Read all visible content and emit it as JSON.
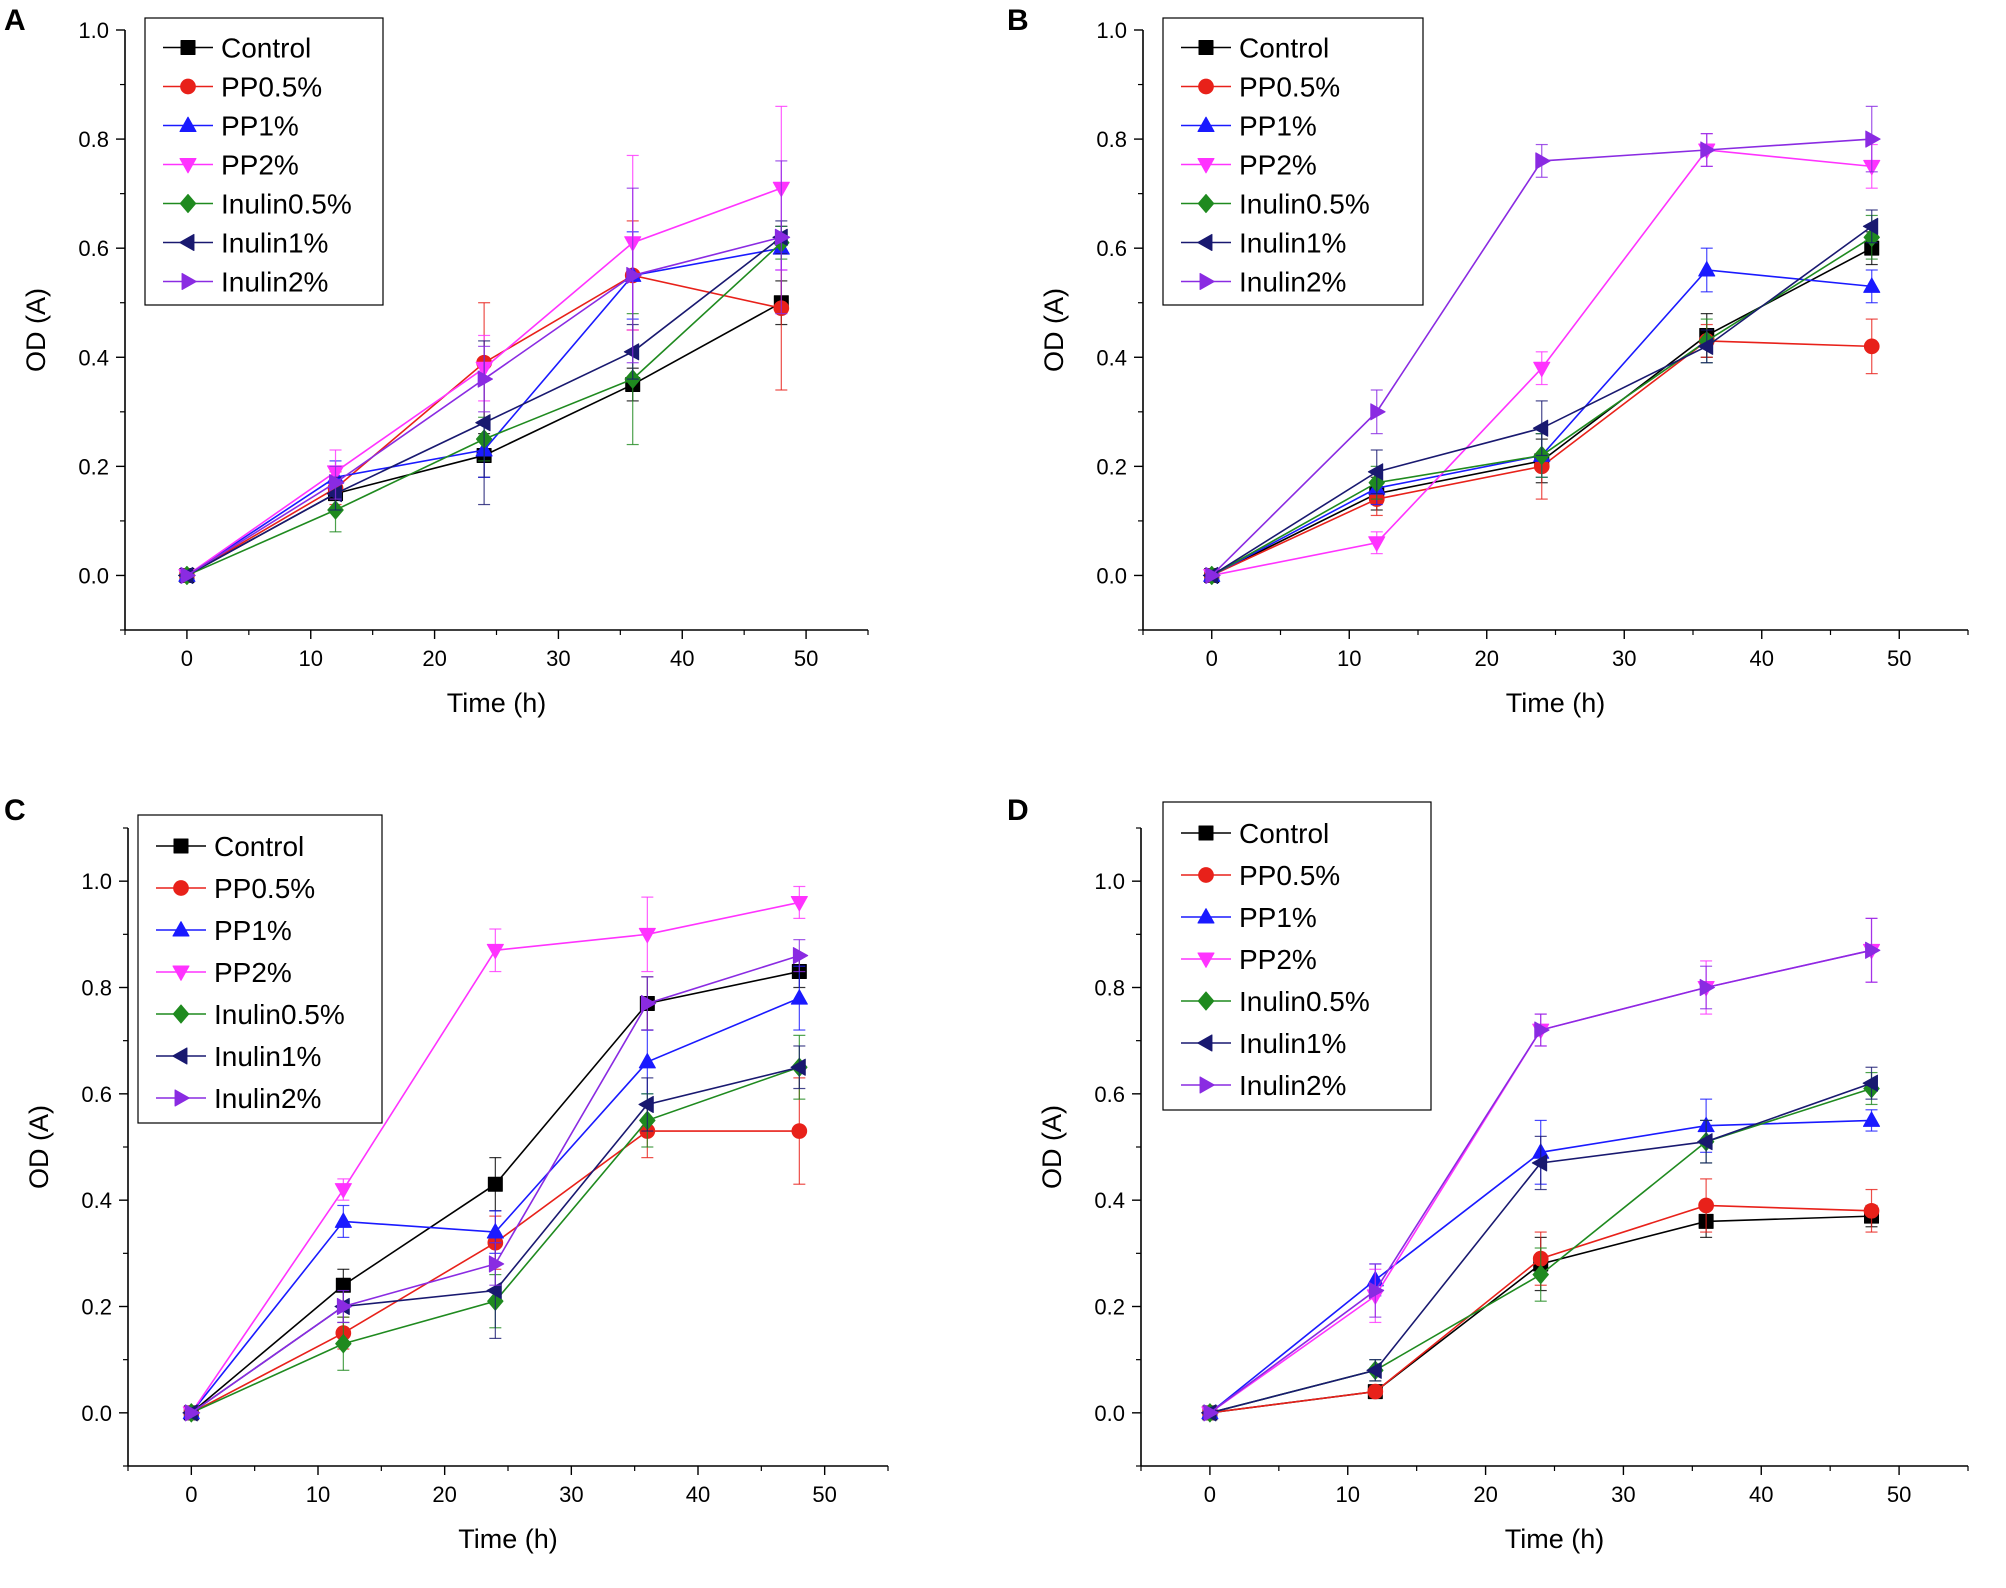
{
  "figure": {
    "colors": {
      "axis": "#000000",
      "legend_border": "#000000"
    }
  },
  "chart_data": [
    {
      "panel": "A",
      "type": "line",
      "xlabel": "Time (h)",
      "ylabel": "OD (A)",
      "xlim": [
        -5,
        55
      ],
      "ylim": [
        -0.1,
        1.0
      ],
      "x_ticks": [
        "0",
        "10",
        "20",
        "30",
        "40",
        "50"
      ],
      "y_ticks": [
        "0.0",
        "0.2",
        "0.4",
        "0.6",
        "0.8",
        "1.0"
      ],
      "x": [
        0,
        12,
        24,
        36,
        48
      ],
      "legend_position": "top-left",
      "series": [
        {
          "name": "Control",
          "color": "#000000",
          "marker": "square",
          "values": [
            0.0,
            0.15,
            0.22,
            0.35,
            0.5
          ],
          "errors": [
            0.0,
            0.03,
            0.04,
            0.03,
            0.04
          ]
        },
        {
          "name": "PP0.5%",
          "color": "#e8211a",
          "marker": "circle",
          "values": [
            0.0,
            0.16,
            0.39,
            0.55,
            0.49
          ],
          "errors": [
            0.0,
            0.03,
            0.11,
            0.1,
            0.15
          ]
        },
        {
          "name": "PP1%",
          "color": "#1a1aff",
          "marker": "triangle-up",
          "values": [
            0.0,
            0.18,
            0.23,
            0.55,
            0.6
          ],
          "errors": [
            0.0,
            0.03,
            0.05,
            0.08,
            0.04
          ]
        },
        {
          "name": "PP2%",
          "color": "#ff33ff",
          "marker": "triangle-down",
          "values": [
            0.0,
            0.19,
            0.38,
            0.61,
            0.71
          ],
          "errors": [
            0.0,
            0.04,
            0.06,
            0.16,
            0.15
          ]
        },
        {
          "name": "Inulin0.5%",
          "color": "#1f8a1f",
          "marker": "diamond",
          "values": [
            0.0,
            0.12,
            0.25,
            0.36,
            0.61
          ],
          "errors": [
            0.0,
            0.04,
            0.04,
            0.12,
            0.03
          ]
        },
        {
          "name": "Inulin1%",
          "color": "#191970",
          "marker": "triangle-left",
          "values": [
            0.0,
            0.15,
            0.28,
            0.41,
            0.62
          ],
          "errors": [
            0.0,
            0.03,
            0.15,
            0.05,
            0.03
          ]
        },
        {
          "name": "Inulin2%",
          "color": "#8a2be2",
          "marker": "triangle-right",
          "values": [
            0.0,
            0.17,
            0.36,
            0.55,
            0.62
          ],
          "errors": [
            0.0,
            0.03,
            0.06,
            0.16,
            0.14
          ]
        }
      ]
    },
    {
      "panel": "B",
      "type": "line",
      "xlabel": "Time (h)",
      "ylabel": "OD (A)",
      "xlim": [
        -5,
        55
      ],
      "ylim": [
        -0.1,
        1.0
      ],
      "x_ticks": [
        "0",
        "10",
        "20",
        "30",
        "40",
        "50"
      ],
      "y_ticks": [
        "0.0",
        "0.2",
        "0.4",
        "0.6",
        "0.8",
        "1.0"
      ],
      "x": [
        0,
        12,
        24,
        36,
        48
      ],
      "legend_position": "top-left",
      "series": [
        {
          "name": "Control",
          "color": "#000000",
          "marker": "square",
          "values": [
            0.0,
            0.15,
            0.21,
            0.44,
            0.6
          ],
          "errors": [
            0.0,
            0.03,
            0.04,
            0.04,
            0.03
          ]
        },
        {
          "name": "PP0.5%",
          "color": "#e8211a",
          "marker": "circle",
          "values": [
            0.0,
            0.14,
            0.2,
            0.43,
            0.42
          ],
          "errors": [
            0.0,
            0.03,
            0.06,
            0.03,
            0.05
          ]
        },
        {
          "name": "PP1%",
          "color": "#1a1aff",
          "marker": "triangle-up",
          "values": [
            0.0,
            0.16,
            0.22,
            0.56,
            0.53
          ],
          "errors": [
            0.0,
            0.03,
            0.04,
            0.04,
            0.03
          ]
        },
        {
          "name": "PP2%",
          "color": "#ff33ff",
          "marker": "triangle-down",
          "values": [
            0.0,
            0.06,
            0.38,
            0.78,
            0.75
          ],
          "errors": [
            0.0,
            0.02,
            0.03,
            0.03,
            0.04
          ]
        },
        {
          "name": "Inulin0.5%",
          "color": "#1f8a1f",
          "marker": "diamond",
          "values": [
            0.0,
            0.17,
            0.22,
            0.43,
            0.62
          ],
          "errors": [
            0.0,
            0.03,
            0.04,
            0.04,
            0.04
          ]
        },
        {
          "name": "Inulin1%",
          "color": "#191970",
          "marker": "triangle-left",
          "values": [
            0.0,
            0.19,
            0.27,
            0.42,
            0.64
          ],
          "errors": [
            0.0,
            0.04,
            0.05,
            0.03,
            0.03
          ]
        },
        {
          "name": "Inulin2%",
          "color": "#8a2be2",
          "marker": "triangle-right",
          "values": [
            0.0,
            0.3,
            0.76,
            0.78,
            0.8
          ],
          "errors": [
            0.0,
            0.04,
            0.03,
            0.03,
            0.06
          ]
        }
      ]
    },
    {
      "panel": "C",
      "type": "line",
      "xlabel": "Time (h)",
      "ylabel": "OD (A)",
      "xlim": [
        -5,
        55
      ],
      "ylim": [
        -0.1,
        1.1
      ],
      "x_ticks": [
        "0",
        "10",
        "20",
        "30",
        "40",
        "50"
      ],
      "y_ticks": [
        "0.0",
        "0.2",
        "0.4",
        "0.6",
        "0.8",
        "1.0"
      ],
      "x": [
        0,
        12,
        24,
        36,
        48
      ],
      "legend_position": "top-left",
      "series": [
        {
          "name": "Control",
          "color": "#000000",
          "marker": "square",
          "values": [
            0.0,
            0.24,
            0.43,
            0.77,
            0.83
          ],
          "errors": [
            0.0,
            0.03,
            0.05,
            0.05,
            0.03
          ]
        },
        {
          "name": "PP0.5%",
          "color": "#e8211a",
          "marker": "circle",
          "values": [
            0.0,
            0.15,
            0.32,
            0.53,
            0.53
          ],
          "errors": [
            0.0,
            0.03,
            0.05,
            0.05,
            0.1
          ]
        },
        {
          "name": "PP1%",
          "color": "#1a1aff",
          "marker": "triangle-up",
          "values": [
            0.0,
            0.36,
            0.34,
            0.66,
            0.78
          ],
          "errors": [
            0.0,
            0.03,
            0.04,
            0.06,
            0.06
          ]
        },
        {
          "name": "PP2%",
          "color": "#ff33ff",
          "marker": "triangle-down",
          "values": [
            0.0,
            0.42,
            0.87,
            0.9,
            0.96
          ],
          "errors": [
            0.0,
            0.02,
            0.04,
            0.07,
            0.03
          ]
        },
        {
          "name": "Inulin0.5%",
          "color": "#1f8a1f",
          "marker": "diamond",
          "values": [
            0.0,
            0.13,
            0.21,
            0.55,
            0.65
          ],
          "errors": [
            0.0,
            0.05,
            0.05,
            0.05,
            0.06
          ]
        },
        {
          "name": "Inulin1%",
          "color": "#191970",
          "marker": "triangle-left",
          "values": [
            0.0,
            0.2,
            0.23,
            0.58,
            0.65
          ],
          "errors": [
            0.0,
            0.03,
            0.09,
            0.05,
            0.04
          ]
        },
        {
          "name": "Inulin2%",
          "color": "#8a2be2",
          "marker": "triangle-right",
          "values": [
            0.0,
            0.2,
            0.28,
            0.77,
            0.86
          ],
          "errors": [
            0.0,
            0.03,
            0.04,
            0.05,
            0.03
          ]
        }
      ]
    },
    {
      "panel": "D",
      "type": "line",
      "xlabel": "Time (h)",
      "ylabel": "OD (A)",
      "xlim": [
        -5,
        55
      ],
      "ylim": [
        -0.1,
        1.1
      ],
      "x_ticks": [
        "0",
        "10",
        "20",
        "30",
        "40",
        "50"
      ],
      "y_ticks": [
        "0.0",
        "0.2",
        "0.4",
        "0.6",
        "0.8",
        "1.0"
      ],
      "x": [
        0,
        12,
        24,
        36,
        48
      ],
      "legend_position": "top-left",
      "series": [
        {
          "name": "Control",
          "color": "#000000",
          "marker": "square",
          "values": [
            0.0,
            0.04,
            0.28,
            0.36,
            0.37
          ],
          "errors": [
            0.0,
            0.01,
            0.05,
            0.03,
            0.02
          ]
        },
        {
          "name": "PP0.5%",
          "color": "#e8211a",
          "marker": "circle",
          "values": [
            0.0,
            0.04,
            0.29,
            0.39,
            0.38
          ],
          "errors": [
            0.0,
            0.01,
            0.05,
            0.05,
            0.04
          ]
        },
        {
          "name": "PP1%",
          "color": "#1a1aff",
          "marker": "triangle-up",
          "values": [
            0.0,
            0.25,
            0.49,
            0.54,
            0.55
          ],
          "errors": [
            0.0,
            0.03,
            0.06,
            0.05,
            0.02
          ]
        },
        {
          "name": "PP2%",
          "color": "#ff33ff",
          "marker": "triangle-down",
          "values": [
            0.0,
            0.22,
            0.72,
            0.8,
            0.87
          ],
          "errors": [
            0.0,
            0.05,
            0.03,
            0.05,
            0.06
          ]
        },
        {
          "name": "Inulin0.5%",
          "color": "#1f8a1f",
          "marker": "diamond",
          "values": [
            0.0,
            0.08,
            0.26,
            0.51,
            0.61
          ],
          "errors": [
            0.0,
            0.02,
            0.05,
            0.04,
            0.03
          ]
        },
        {
          "name": "Inulin1%",
          "color": "#191970",
          "marker": "triangle-left",
          "values": [
            0.0,
            0.08,
            0.47,
            0.51,
            0.62
          ],
          "errors": [
            0.0,
            0.02,
            0.05,
            0.04,
            0.03
          ]
        },
        {
          "name": "Inulin2%",
          "color": "#8a2be2",
          "marker": "triangle-right",
          "values": [
            0.0,
            0.23,
            0.72,
            0.8,
            0.87
          ],
          "errors": [
            0.0,
            0.05,
            0.03,
            0.04,
            0.06
          ]
        }
      ]
    }
  ]
}
